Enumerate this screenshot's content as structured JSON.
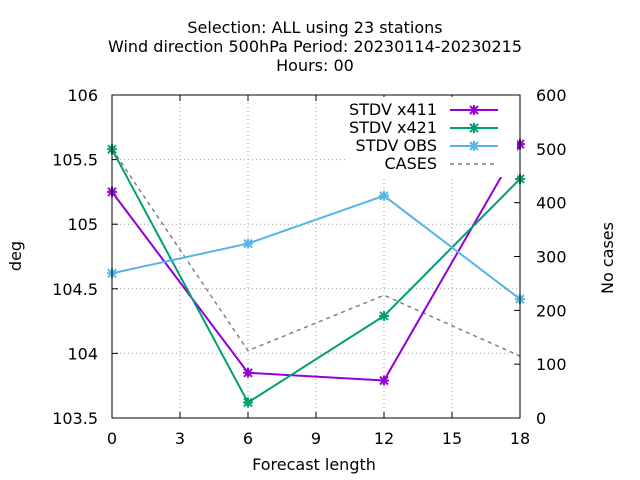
{
  "chart_data": {
    "type": "line",
    "title": [
      "Selection: ALL using    23 stations",
      "Wind direction 500hPa   Period: 20230114-20230215",
      "Hours:  00"
    ],
    "xlabel": "Forecast length",
    "ylabel": "deg",
    "y2label": "No cases",
    "x": [
      0,
      6,
      12,
      18
    ],
    "xticks": [
      "0",
      "3",
      "6",
      "9",
      "12",
      "15",
      "18"
    ],
    "xlim": [
      0,
      18
    ],
    "ylim": [
      103.5,
      106
    ],
    "yticks": [
      "103.5",
      "104",
      "104.5",
      "105",
      "105.5",
      "106"
    ],
    "y2lim": [
      0,
      600
    ],
    "y2ticks": [
      "0",
      "100",
      "200",
      "300",
      "400",
      "500",
      "600"
    ],
    "grid": true,
    "legend_position": "top-right",
    "series": [
      {
        "name": "STDV x411",
        "color": "#9400d3",
        "axis": "y1",
        "style": "solid",
        "marker": "star",
        "values": [
          105.25,
          103.85,
          103.79,
          105.62
        ]
      },
      {
        "name": "STDV x421",
        "color": "#009e73",
        "axis": "y1",
        "style": "solid",
        "marker": "star",
        "values": [
          105.58,
          103.62,
          104.29,
          105.35
        ]
      },
      {
        "name": "STDV OBS",
        "color": "#56b4e9",
        "axis": "y1",
        "style": "solid",
        "marker": "star",
        "values": [
          104.62,
          104.85,
          105.22,
          104.42
        ]
      },
      {
        "name": "CASES",
        "color": "#808080",
        "axis": "y2",
        "style": "dashed",
        "marker": "none",
        "values": [
          500,
          125,
          228,
          115
        ]
      }
    ]
  }
}
